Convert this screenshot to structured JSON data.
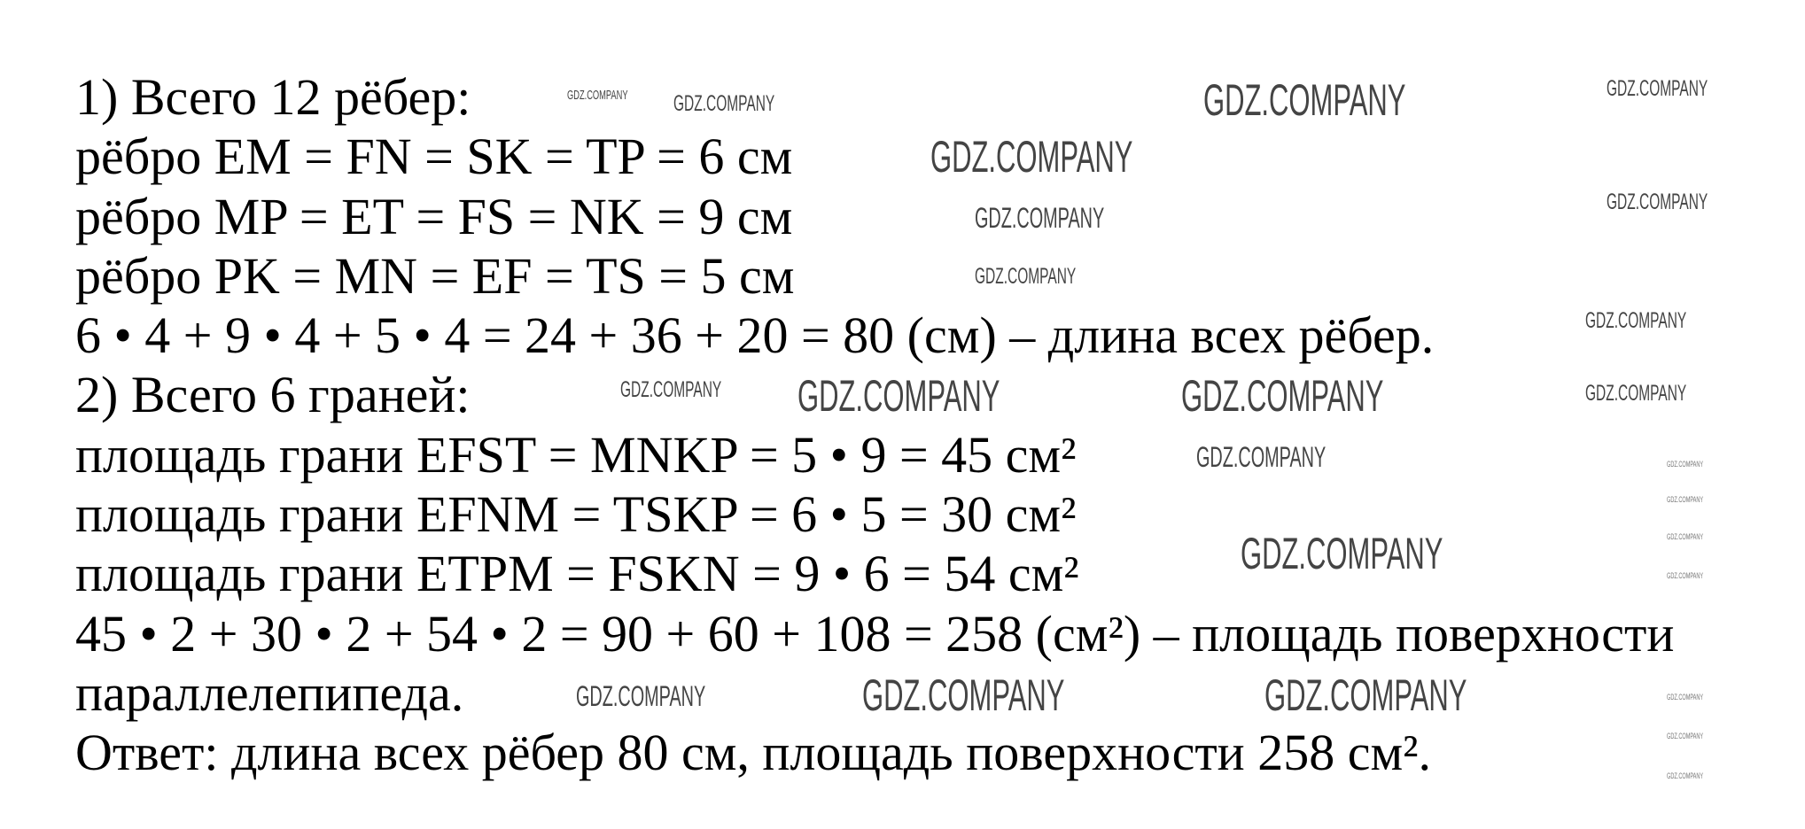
{
  "lines": [
    "1) Всего 12 рёбер:",
    "рёбро EM = FN = SK = TP = 6 см",
    "рёбро MP = ET = FS = NK = 9 см",
    "рёбро PK = MN = EF = TS = 5 см",
    "6 • 4 + 9 • 4 + 5 • 4 = 24 + 36 + 20 = 80 (см) – длина всех рёбер.",
    "2) Всего 6 граней:",
    "площадь грани EFST = MNKP = 5 • 9 = 45 см²",
    "площадь грани EFNM = TSKP = 6 • 5 = 30 см²",
    "площадь грани ETPM = FSKN = 9 • 6 = 54 см²",
    "45 • 2 + 30 •  2 + 54 •  2 = 90 + 60 + 108 = 258 (см²) – площадь поверхности",
    "параллелепипеда.",
    "Ответ: длина всех рёбер 80 см, площадь поверхности 258 см²."
  ],
  "watermark": "GDZ.COMPANY"
}
